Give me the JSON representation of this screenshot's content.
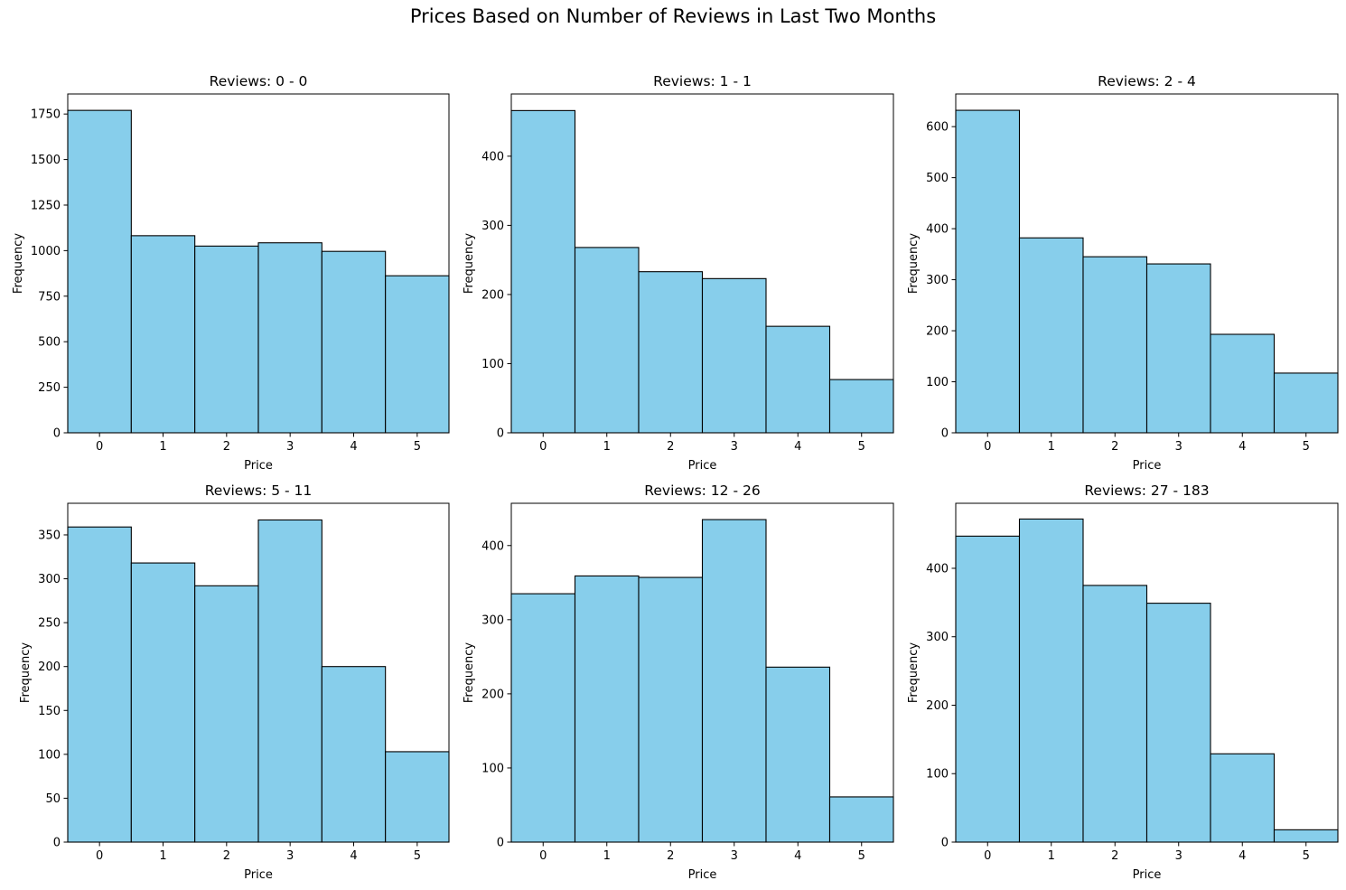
{
  "title": "Prices Based on Number of Reviews in Last Two Months",
  "colors": {
    "bar_fill": "#87ceeb",
    "bar_edge": "#000000",
    "axes": "#000000",
    "background": "#ffffff"
  },
  "chart_data": [
    {
      "type": "bar",
      "title": "Reviews: 0 - 0",
      "xlabel": "Price",
      "ylabel": "Frequency",
      "categories": [
        "0",
        "1",
        "2",
        "3",
        "4",
        "5"
      ],
      "values": [
        1770,
        1082,
        1025,
        1043,
        996,
        862
      ],
      "xlim": [
        -0.5,
        5.5
      ],
      "ylim": [
        0,
        1860
      ],
      "yticks": [
        0,
        250,
        500,
        750,
        1000,
        1250,
        1500,
        1750
      ],
      "grid": false
    },
    {
      "type": "bar",
      "title": "Reviews: 1 - 1",
      "xlabel": "Price",
      "ylabel": "Frequency",
      "categories": [
        "0",
        "1",
        "2",
        "3",
        "4",
        "5"
      ],
      "values": [
        466,
        268,
        233,
        223,
        154,
        77
      ],
      "xlim": [
        -0.5,
        5.5
      ],
      "ylim": [
        0,
        490
      ],
      "yticks": [
        0,
        100,
        200,
        300,
        400
      ],
      "grid": false
    },
    {
      "type": "bar",
      "title": "Reviews: 2 - 4",
      "xlabel": "Price",
      "ylabel": "Frequency",
      "categories": [
        "0",
        "1",
        "2",
        "3",
        "4",
        "5"
      ],
      "values": [
        632,
        382,
        345,
        331,
        193,
        117
      ],
      "xlim": [
        -0.5,
        5.5
      ],
      "ylim": [
        0,
        664
      ],
      "yticks": [
        0,
        100,
        200,
        300,
        400,
        500,
        600
      ],
      "grid": false
    },
    {
      "type": "bar",
      "title": "Reviews: 5 - 11",
      "xlabel": "Price",
      "ylabel": "Frequency",
      "categories": [
        "0",
        "1",
        "2",
        "3",
        "4",
        "5"
      ],
      "values": [
        359,
        318,
        292,
        367,
        200,
        103
      ],
      "xlim": [
        -0.5,
        5.5
      ],
      "ylim": [
        0,
        386
      ],
      "yticks": [
        0,
        50,
        100,
        150,
        200,
        250,
        300,
        350
      ],
      "grid": false
    },
    {
      "type": "bar",
      "title": "Reviews: 12 - 26",
      "xlabel": "Price",
      "ylabel": "Frequency",
      "categories": [
        "0",
        "1",
        "2",
        "3",
        "4",
        "5"
      ],
      "values": [
        335,
        359,
        357,
        435,
        236,
        61
      ],
      "xlim": [
        -0.5,
        5.5
      ],
      "ylim": [
        0,
        457
      ],
      "yticks": [
        0,
        100,
        200,
        300,
        400
      ],
      "grid": false
    },
    {
      "type": "bar",
      "title": "Reviews: 27 - 183",
      "xlabel": "Price",
      "ylabel": "Frequency",
      "categories": [
        "0",
        "1",
        "2",
        "3",
        "4",
        "5"
      ],
      "values": [
        447,
        472,
        375,
        349,
        129,
        18
      ],
      "xlim": [
        -0.5,
        5.5
      ],
      "ylim": [
        0,
        495
      ],
      "yticks": [
        0,
        100,
        200,
        300,
        400
      ],
      "grid": false
    }
  ]
}
